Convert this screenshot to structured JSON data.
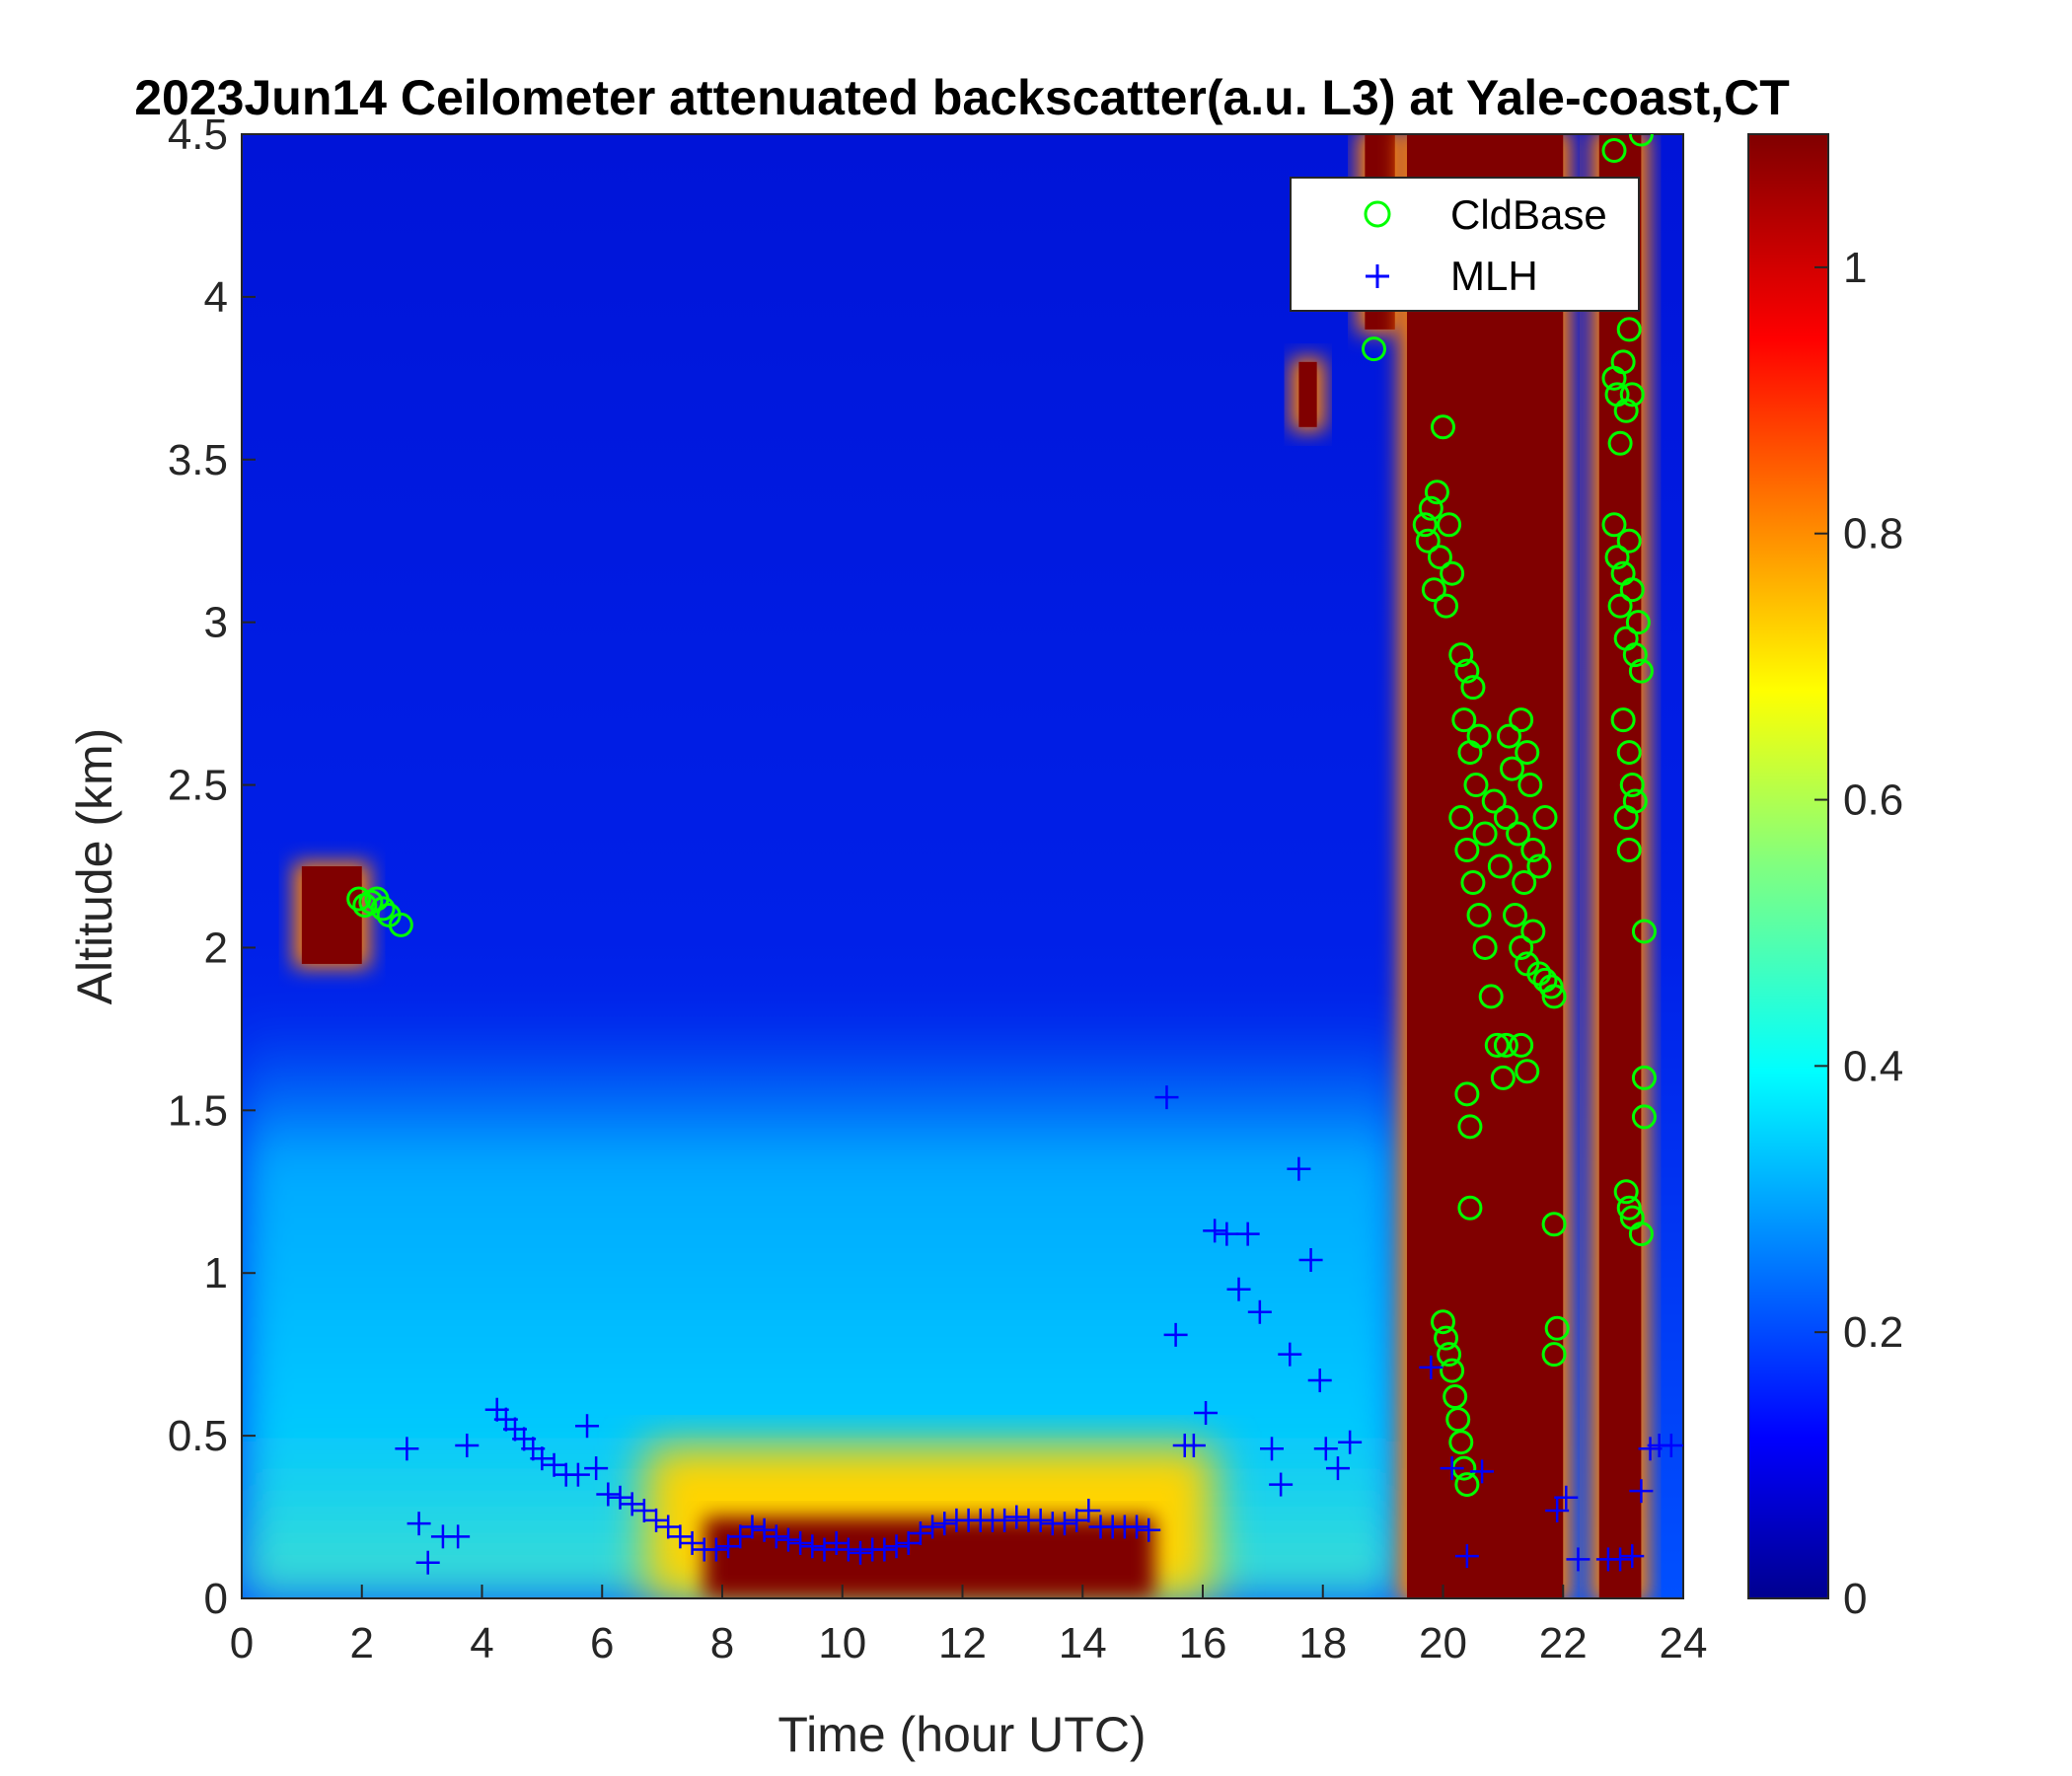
{
  "chart_data": {
    "type": "heatmap",
    "title": "2023Jun14 Ceilometer attenuated backscatter(a.u. L3) at Yale-coast,CT",
    "xlabel": "Time (hour UTC)",
    "ylabel": "Altitude (km)",
    "xlim": [
      0,
      24
    ],
    "ylim": [
      0,
      4.5
    ],
    "xticks": [
      0,
      2,
      4,
      6,
      8,
      10,
      12,
      14,
      16,
      18,
      20,
      22,
      24
    ],
    "yticks": [
      0,
      0.5,
      1,
      1.5,
      2,
      2.5,
      3,
      3.5,
      4,
      4.5
    ],
    "colorbar": {
      "colormap": "jet",
      "range": [
        0,
        1.1
      ],
      "ticks": [
        0,
        0.2,
        0.4,
        0.6,
        0.8,
        1
      ]
    },
    "legend": {
      "position": "top-right",
      "entries": [
        {
          "name": "CldBase",
          "marker": "circle",
          "color": "#00ff00"
        },
        {
          "name": "MLH",
          "marker": "plus",
          "color": "#0000ff"
        }
      ]
    },
    "backscatter_features": [
      {
        "type": "boundary_layer_aerosol",
        "t_range": [
          0,
          19.3
        ],
        "top_km": 1.8,
        "level": 0.38
      },
      {
        "type": "near_surface_high",
        "t_range": [
          7.7,
          15.2
        ],
        "top_km": 0.25,
        "level": 1.1
      },
      {
        "type": "cloud",
        "t_range": [
          1.0,
          2.0
        ],
        "z_range": [
          1.95,
          2.25
        ],
        "level": 1.1
      },
      {
        "type": "cloud",
        "t_range": [
          17.6,
          17.9
        ],
        "z_range": [
          3.6,
          3.8
        ],
        "level": 1.1
      },
      {
        "type": "cloud",
        "t_range": [
          18.7,
          19.2
        ],
        "z_range": [
          3.9,
          4.5
        ],
        "level": 1.1
      },
      {
        "type": "precipitation_column",
        "t_range": [
          19.4,
          22.0
        ],
        "z_range": [
          0,
          4.5
        ],
        "level": 1.1
      },
      {
        "type": "precipitation_column",
        "t_range": [
          22.6,
          23.3
        ],
        "z_range": [
          0,
          4.5
        ],
        "level": 1.1
      }
    ],
    "series": [
      {
        "name": "CldBase",
        "points": [
          [
            1.95,
            2.15
          ],
          [
            2.05,
            2.13
          ],
          [
            2.15,
            2.14
          ],
          [
            2.25,
            2.15
          ],
          [
            2.35,
            2.12
          ],
          [
            2.45,
            2.1
          ],
          [
            2.65,
            2.07
          ],
          [
            18.85,
            3.84
          ],
          [
            19.7,
            3.3
          ],
          [
            19.75,
            3.25
          ],
          [
            19.8,
            3.35
          ],
          [
            19.85,
            3.1
          ],
          [
            19.9,
            3.4
          ],
          [
            19.95,
            3.2
          ],
          [
            20.0,
            3.6
          ],
          [
            20.05,
            3.05
          ],
          [
            20.1,
            3.3
          ],
          [
            20.15,
            3.15
          ],
          [
            20.3,
            2.9
          ],
          [
            20.35,
            2.7
          ],
          [
            20.4,
            2.85
          ],
          [
            20.45,
            2.6
          ],
          [
            20.5,
            2.8
          ],
          [
            20.55,
            2.5
          ],
          [
            20.6,
            2.65
          ],
          [
            20.3,
            2.4
          ],
          [
            20.4,
            2.3
          ],
          [
            20.5,
            2.2
          ],
          [
            20.6,
            2.1
          ],
          [
            20.7,
            2.0
          ],
          [
            20.8,
            1.85
          ],
          [
            20.9,
            1.7
          ],
          [
            21.0,
            1.6
          ],
          [
            20.7,
            2.35
          ],
          [
            20.85,
            2.45
          ],
          [
            20.95,
            2.25
          ],
          [
            21.05,
            2.4
          ],
          [
            21.15,
            2.55
          ],
          [
            21.25,
            2.35
          ],
          [
            21.35,
            2.2
          ],
          [
            21.45,
            2.5
          ],
          [
            21.2,
            2.1
          ],
          [
            21.3,
            2.0
          ],
          [
            21.4,
            1.95
          ],
          [
            21.5,
            2.05
          ],
          [
            21.6,
            1.92
          ],
          [
            21.7,
            1.9
          ],
          [
            21.8,
            1.88
          ],
          [
            21.85,
            1.85
          ],
          [
            21.1,
            2.65
          ],
          [
            21.3,
            2.7
          ],
          [
            21.4,
            2.6
          ],
          [
            21.5,
            2.3
          ],
          [
            21.6,
            2.25
          ],
          [
            21.7,
            2.4
          ],
          [
            20.4,
            1.55
          ],
          [
            20.45,
            1.45
          ],
          [
            21.05,
            1.7
          ],
          [
            21.3,
            1.7
          ],
          [
            21.4,
            1.62
          ],
          [
            20.45,
            1.2
          ],
          [
            21.85,
            1.15
          ],
          [
            20.0,
            0.85
          ],
          [
            20.05,
            0.8
          ],
          [
            20.1,
            0.75
          ],
          [
            20.15,
            0.7
          ],
          [
            20.2,
            0.62
          ],
          [
            20.25,
            0.55
          ],
          [
            20.3,
            0.48
          ],
          [
            20.35,
            0.4
          ],
          [
            20.4,
            0.35
          ],
          [
            21.9,
            0.83
          ],
          [
            21.85,
            0.75
          ],
          [
            22.85,
            4.45
          ],
          [
            23.3,
            4.5
          ],
          [
            22.85,
            3.75
          ],
          [
            22.9,
            3.7
          ],
          [
            22.95,
            3.55
          ],
          [
            23.0,
            3.8
          ],
          [
            23.05,
            3.65
          ],
          [
            23.1,
            3.9
          ],
          [
            23.15,
            3.7
          ],
          [
            22.85,
            3.3
          ],
          [
            22.9,
            3.2
          ],
          [
            22.95,
            3.05
          ],
          [
            23.0,
            3.15
          ],
          [
            23.05,
            2.95
          ],
          [
            23.1,
            3.25
          ],
          [
            23.15,
            3.1
          ],
          [
            23.2,
            2.9
          ],
          [
            23.25,
            3.0
          ],
          [
            23.3,
            2.85
          ],
          [
            23.0,
            2.7
          ],
          [
            23.1,
            2.6
          ],
          [
            23.15,
            2.5
          ],
          [
            23.2,
            2.45
          ],
          [
            23.05,
            2.4
          ],
          [
            23.1,
            2.3
          ],
          [
            23.35,
            2.05
          ],
          [
            23.35,
            1.6
          ],
          [
            23.35,
            1.48
          ],
          [
            23.05,
            1.25
          ],
          [
            23.1,
            1.2
          ],
          [
            23.15,
            1.17
          ],
          [
            23.3,
            1.12
          ]
        ]
      },
      {
        "name": "MLH",
        "points": [
          [
            2.75,
            0.46
          ],
          [
            2.95,
            0.23
          ],
          [
            3.1,
            0.11
          ],
          [
            3.35,
            0.19
          ],
          [
            3.6,
            0.19
          ],
          [
            3.75,
            0.47
          ],
          [
            4.25,
            0.58
          ],
          [
            4.4,
            0.55
          ],
          [
            4.55,
            0.52
          ],
          [
            4.7,
            0.49
          ],
          [
            4.85,
            0.46
          ],
          [
            5.0,
            0.43
          ],
          [
            5.2,
            0.41
          ],
          [
            5.4,
            0.38
          ],
          [
            5.6,
            0.38
          ],
          [
            5.75,
            0.53
          ],
          [
            5.9,
            0.4
          ],
          [
            6.1,
            0.32
          ],
          [
            6.3,
            0.31
          ],
          [
            6.5,
            0.29
          ],
          [
            6.7,
            0.27
          ],
          [
            6.9,
            0.24
          ],
          [
            7.1,
            0.22
          ],
          [
            7.3,
            0.19
          ],
          [
            7.5,
            0.17
          ],
          [
            7.7,
            0.15
          ],
          [
            7.9,
            0.15
          ],
          [
            8.1,
            0.16
          ],
          [
            8.3,
            0.19
          ],
          [
            8.5,
            0.22
          ],
          [
            8.7,
            0.21
          ],
          [
            8.9,
            0.19
          ],
          [
            9.1,
            0.18
          ],
          [
            9.3,
            0.17
          ],
          [
            9.5,
            0.16
          ],
          [
            9.7,
            0.15
          ],
          [
            9.9,
            0.17
          ],
          [
            10.1,
            0.15
          ],
          [
            10.3,
            0.14
          ],
          [
            10.5,
            0.15
          ],
          [
            10.7,
            0.15
          ],
          [
            10.9,
            0.16
          ],
          [
            11.1,
            0.17
          ],
          [
            11.3,
            0.2
          ],
          [
            11.5,
            0.22
          ],
          [
            11.7,
            0.23
          ],
          [
            11.9,
            0.24
          ],
          [
            12.1,
            0.24
          ],
          [
            12.3,
            0.24
          ],
          [
            12.5,
            0.24
          ],
          [
            12.7,
            0.24
          ],
          [
            12.9,
            0.25
          ],
          [
            13.1,
            0.24
          ],
          [
            13.3,
            0.24
          ],
          [
            13.5,
            0.23
          ],
          [
            13.7,
            0.23
          ],
          [
            13.9,
            0.24
          ],
          [
            14.1,
            0.27
          ],
          [
            14.3,
            0.22
          ],
          [
            14.5,
            0.22
          ],
          [
            14.7,
            0.22
          ],
          [
            14.9,
            0.22
          ],
          [
            15.1,
            0.21
          ],
          [
            15.4,
            1.54
          ],
          [
            15.55,
            0.81
          ],
          [
            15.7,
            0.47
          ],
          [
            15.85,
            0.47
          ],
          [
            16.05,
            0.57
          ],
          [
            16.2,
            1.13
          ],
          [
            16.4,
            1.12
          ],
          [
            16.6,
            0.95
          ],
          [
            16.75,
            1.12
          ],
          [
            16.95,
            0.88
          ],
          [
            17.15,
            0.46
          ],
          [
            17.3,
            0.35
          ],
          [
            17.45,
            0.75
          ],
          [
            17.6,
            1.32
          ],
          [
            17.8,
            1.04
          ],
          [
            17.95,
            0.67
          ],
          [
            18.05,
            0.46
          ],
          [
            18.25,
            0.4
          ],
          [
            18.45,
            0.48
          ],
          [
            19.8,
            0.71
          ],
          [
            20.15,
            0.4
          ],
          [
            20.4,
            0.13
          ],
          [
            20.65,
            0.39
          ],
          [
            21.9,
            0.27
          ],
          [
            22.05,
            0.31
          ],
          [
            22.25,
            0.12
          ],
          [
            22.75,
            0.12
          ],
          [
            22.95,
            0.12
          ],
          [
            23.15,
            0.13
          ],
          [
            23.3,
            0.33
          ],
          [
            23.45,
            0.46
          ],
          [
            23.6,
            0.47
          ],
          [
            23.8,
            0.47
          ]
        ]
      }
    ]
  }
}
